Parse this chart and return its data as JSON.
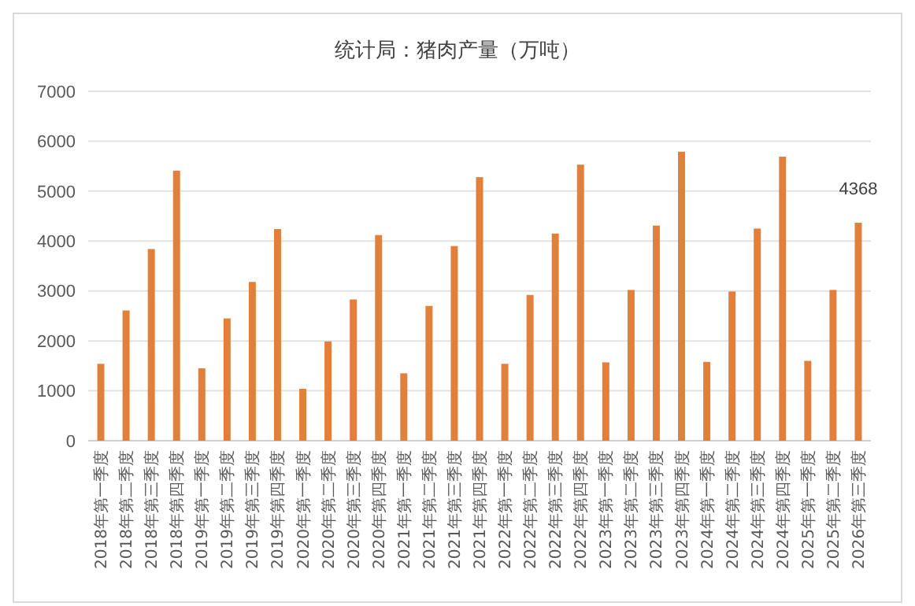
{
  "chart_data": {
    "type": "bar",
    "title": "统计局：猪肉产量（万吨）",
    "categories": [
      "2018年第一季度",
      "2018年第二季度",
      "2018年第三季度",
      "2018年第四季度",
      "2019年第一季度",
      "2019年第二季度",
      "2019年第三季度",
      "2019年第四季度",
      "2020年第一季度",
      "2020年第二季度",
      "2020年第三季度",
      "2020年第四季度",
      "2021年第一季度",
      "2021年第二季度",
      "2021年第三季度",
      "2021年第四季度",
      "2022年第一季度",
      "2022年第二季度",
      "2022年第三季度",
      "2022年第四季度",
      "2023年第一季度",
      "2023年第二季度",
      "2023年第三季度",
      "2023年第四季度",
      "2024年第一季度",
      "2024年第二季度",
      "2024年第三季度",
      "2024年第四季度",
      "2025年第一季度",
      "2025年第二季度",
      "2026年第三季度"
    ],
    "values": [
      1540,
      2610,
      3840,
      5410,
      1450,
      2450,
      3180,
      4240,
      1040,
      1990,
      2830,
      4120,
      1350,
      2700,
      3900,
      5280,
      1540,
      2920,
      4150,
      5530,
      1570,
      3020,
      4310,
      5790,
      1580,
      2990,
      4250,
      5690,
      1600,
      3020,
      4368
    ],
    "value_labels": [
      null,
      null,
      null,
      null,
      null,
      null,
      null,
      null,
      null,
      null,
      null,
      null,
      null,
      null,
      null,
      null,
      null,
      null,
      null,
      null,
      null,
      null,
      null,
      null,
      null,
      null,
      null,
      null,
      null,
      null,
      "4368"
    ],
    "color": "#e0803c",
    "ylim": [
      0,
      7000
    ],
    "yticks": [
      0,
      1000,
      2000,
      3000,
      4000,
      5000,
      6000,
      7000
    ],
    "grid": "y"
  }
}
